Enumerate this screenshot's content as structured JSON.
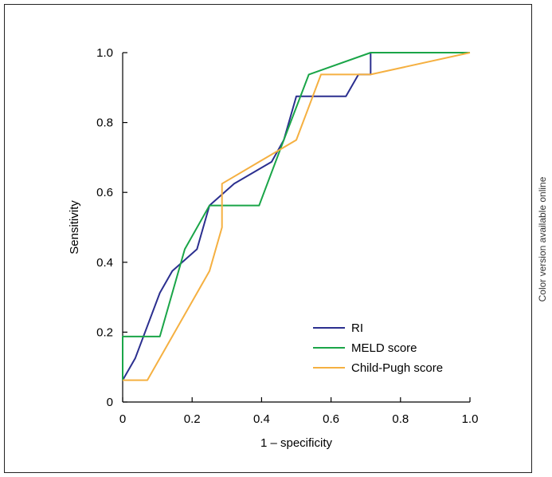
{
  "side_note": "Color version available online",
  "chart_data": {
    "type": "line",
    "title": "",
    "xlabel": "1 – specificity",
    "ylabel": "Sensitivity",
    "xlim": [
      0,
      1.0
    ],
    "ylim": [
      0,
      1.0
    ],
    "x_ticks": [
      "0",
      "0.2",
      "0.4",
      "0.6",
      "0.8",
      "1.0"
    ],
    "y_ticks": [
      "0",
      "0.2",
      "0.4",
      "0.6",
      "0.8",
      "1.0"
    ],
    "x_tick_values": [
      0,
      0.2,
      0.4,
      0.6,
      0.8,
      1.0
    ],
    "y_tick_values": [
      0,
      0.2,
      0.4,
      0.6,
      0.8,
      1.0
    ],
    "grid": false,
    "legend_position": "bottom-right",
    "series": [
      {
        "name": "RI",
        "color": "#2b2f8f",
        "x": [
          0,
          0.036,
          0.107,
          0.143,
          0.214,
          0.25,
          0.321,
          0.429,
          0.464,
          0.5,
          0.643,
          0.679,
          0.714,
          0.714,
          1.0
        ],
        "y": [
          0.0625,
          0.125,
          0.3125,
          0.375,
          0.4375,
          0.5625,
          0.625,
          0.6875,
          0.75,
          0.875,
          0.875,
          0.9375,
          0.9375,
          1.0,
          1.0
        ]
      },
      {
        "name": "MELD score",
        "color": "#1aa548",
        "x": [
          0,
          0,
          0.107,
          0.179,
          0.25,
          0.393,
          0.464,
          0.536,
          0.714,
          1.0
        ],
        "y": [
          0.0625,
          0.1875,
          0.1875,
          0.4375,
          0.5625,
          0.5625,
          0.75,
          0.9375,
          1.0,
          1.0
        ]
      },
      {
        "name": "Child-Pugh score",
        "color": "#f5b041",
        "x": [
          0,
          0.071,
          0.25,
          0.286,
          0.286,
          0.393,
          0.5,
          0.571,
          0.714,
          1.0
        ],
        "y": [
          0.0625,
          0.0625,
          0.375,
          0.5,
          0.625,
          0.6875,
          0.75,
          0.9375,
          0.9375,
          1.0
        ]
      }
    ]
  }
}
